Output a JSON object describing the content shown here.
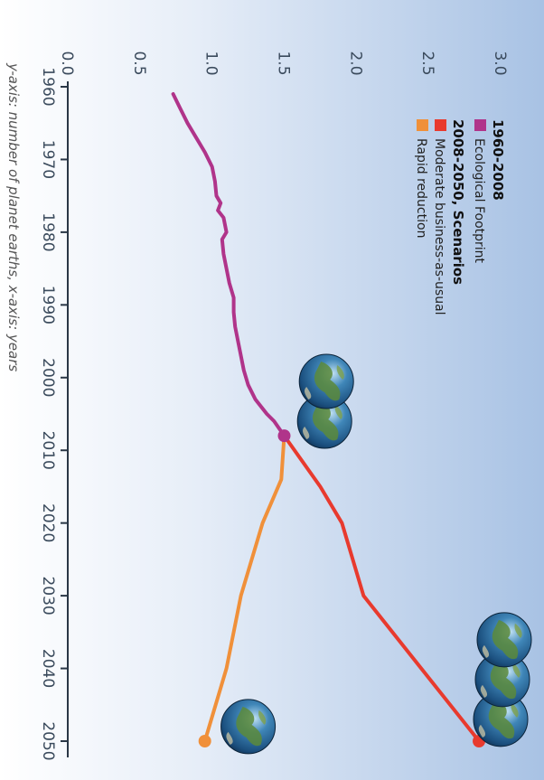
{
  "chart_data": {
    "type": "line",
    "orientation": "rotated-90-clockwise",
    "caption": "y-axis: number of planet earths, x-axis: years",
    "xlim": [
      1960,
      2050
    ],
    "ylim": [
      0,
      3.0
    ],
    "x_ticks": [
      "1960",
      "1970",
      "1980",
      "1990",
      "2000",
      "2010",
      "2020",
      "2030",
      "2040",
      "2050"
    ],
    "y_ticks": [
      "0.0",
      "0.5",
      "1.0",
      "1.5",
      "2.0",
      "2.5",
      "3.0"
    ],
    "legend": {
      "groups": [
        {
          "heading": "1960-2008",
          "items": [
            {
              "label": "Ecological Footprint",
              "color": "#b0348a"
            }
          ]
        },
        {
          "heading": "2008-2050, Scenarios",
          "items": [
            {
              "label": "Moderate business-as-usual",
              "color": "#e83a2e"
            },
            {
              "label": "Rapid reduction",
              "color": "#f0903a"
            }
          ]
        }
      ]
    },
    "series": [
      {
        "name": "Ecological Footprint",
        "color": "#b0348a",
        "points": [
          [
            1961,
            0.73
          ],
          [
            1963,
            0.78
          ],
          [
            1965,
            0.83
          ],
          [
            1967,
            0.89
          ],
          [
            1969,
            0.95
          ],
          [
            1971,
            1.0
          ],
          [
            1973,
            1.02
          ],
          [
            1975,
            1.03
          ],
          [
            1976,
            1.06
          ],
          [
            1977,
            1.04
          ],
          [
            1978,
            1.08
          ],
          [
            1980,
            1.1
          ],
          [
            1981,
            1.07
          ],
          [
            1983,
            1.08
          ],
          [
            1985,
            1.1
          ],
          [
            1987,
            1.12
          ],
          [
            1989,
            1.15
          ],
          [
            1991,
            1.15
          ],
          [
            1993,
            1.16
          ],
          [
            1995,
            1.18
          ],
          [
            1997,
            1.2
          ],
          [
            1999,
            1.22
          ],
          [
            2001,
            1.25
          ],
          [
            2003,
            1.3
          ],
          [
            2005,
            1.38
          ],
          [
            2006,
            1.43
          ],
          [
            2008,
            1.5
          ]
        ]
      },
      {
        "name": "Moderate business-as-usual",
        "color": "#e83a2e",
        "points": [
          [
            2008,
            1.5
          ],
          [
            2015,
            1.75
          ],
          [
            2020,
            1.9
          ],
          [
            2030,
            2.05
          ],
          [
            2040,
            2.45
          ],
          [
            2050,
            2.85
          ]
        ]
      },
      {
        "name": "Rapid reduction",
        "color": "#f0903a",
        "points": [
          [
            2008,
            1.5
          ],
          [
            2014,
            1.48
          ],
          [
            2020,
            1.35
          ],
          [
            2030,
            1.2
          ],
          [
            2040,
            1.1
          ],
          [
            2050,
            0.95
          ]
        ]
      }
    ],
    "markers": [
      {
        "x": 2008,
        "y": 1.5,
        "color": "#b0348a"
      },
      {
        "x": 2050,
        "y": 2.85,
        "color": "#e83a2e"
      },
      {
        "x": 2050,
        "y": 0.95,
        "color": "#f0903a"
      }
    ],
    "earth_icons": [
      {
        "x": 2006,
        "y": 1.78,
        "count": 2,
        "name": "earth-icon-group-2008"
      },
      {
        "x": 2047,
        "y": 3.0,
        "count": 3,
        "name": "earth-icon-group-2050-bau"
      },
      {
        "x": 2048,
        "y": 1.25,
        "count": 1,
        "name": "earth-icon-2050-reduction"
      }
    ]
  }
}
